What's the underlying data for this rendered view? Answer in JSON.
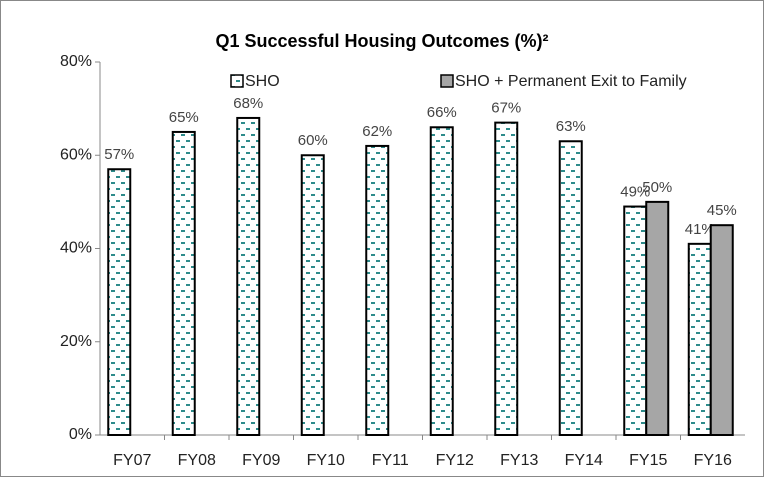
{
  "chart_data": {
    "type": "bar",
    "title": "Q1 Successful Housing Outcomes (%)²",
    "categories": [
      "FY07",
      "FY08",
      "FY09",
      "FY10",
      "FY11",
      "FY12",
      "FY13",
      "FY14",
      "FY15",
      "FY16"
    ],
    "series": [
      {
        "name": "SHO",
        "color": "#2e8b8b",
        "pattern": "dashes",
        "values": [
          57,
          65,
          68,
          60,
          62,
          66,
          67,
          63,
          49,
          41
        ],
        "value_labels": [
          "57%",
          "65%",
          "68%",
          "60%",
          "62%",
          "66%",
          "67%",
          "63%",
          "49%",
          "41%"
        ]
      },
      {
        "name": "SHO + Permanent Exit to Family",
        "color": "#a6a6a6",
        "values": [
          null,
          null,
          null,
          null,
          null,
          null,
          null,
          null,
          50,
          45
        ],
        "value_labels": [
          null,
          null,
          null,
          null,
          null,
          null,
          null,
          null,
          "50%",
          "45%"
        ]
      }
    ],
    "ylim": [
      0,
      80
    ],
    "yticks": [
      {
        "value": 0,
        "label": "0%"
      },
      {
        "value": 20,
        "label": "20%"
      },
      {
        "value": 40,
        "label": "40%"
      },
      {
        "value": 60,
        "label": "60%"
      },
      {
        "value": 80,
        "label": "80%"
      }
    ],
    "grid": false,
    "legend": "top"
  }
}
